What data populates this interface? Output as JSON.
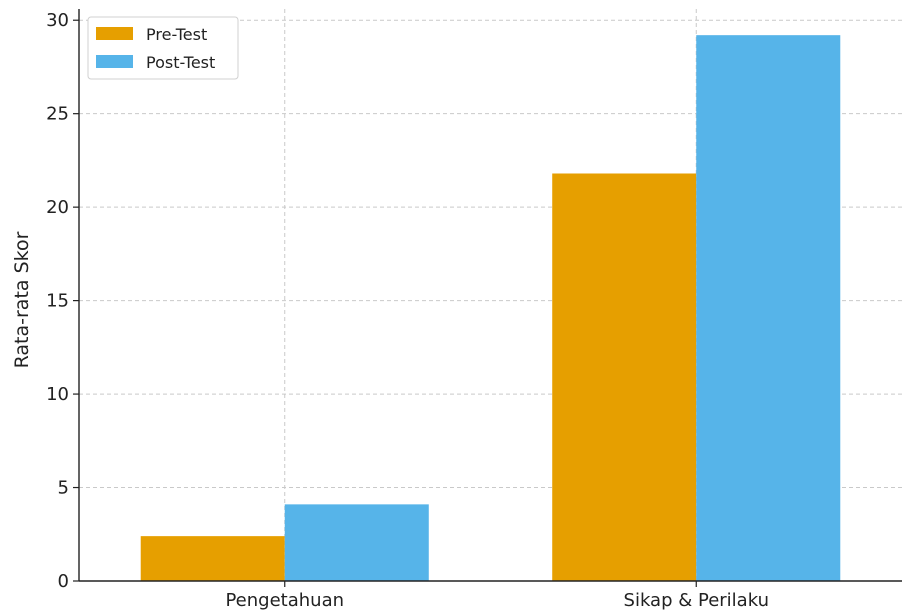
{
  "chart_data": {
    "type": "bar",
    "title": "",
    "xlabel": "",
    "ylabel": "Rata-rata Skor",
    "categories": [
      "Pengetahuan",
      "Sikap & Perilaku"
    ],
    "series": [
      {
        "name": "Pre-Test",
        "color": "#E69F00",
        "values": [
          2.4,
          21.8
        ]
      },
      {
        "name": "Post-Test",
        "color": "#56B4E9",
        "values": [
          4.1,
          29.2
        ]
      }
    ],
    "ylim": [
      0,
      30.6
    ],
    "yticks": [
      0,
      5,
      10,
      15,
      20,
      25,
      30
    ],
    "grid": true,
    "legend": "top-left"
  }
}
